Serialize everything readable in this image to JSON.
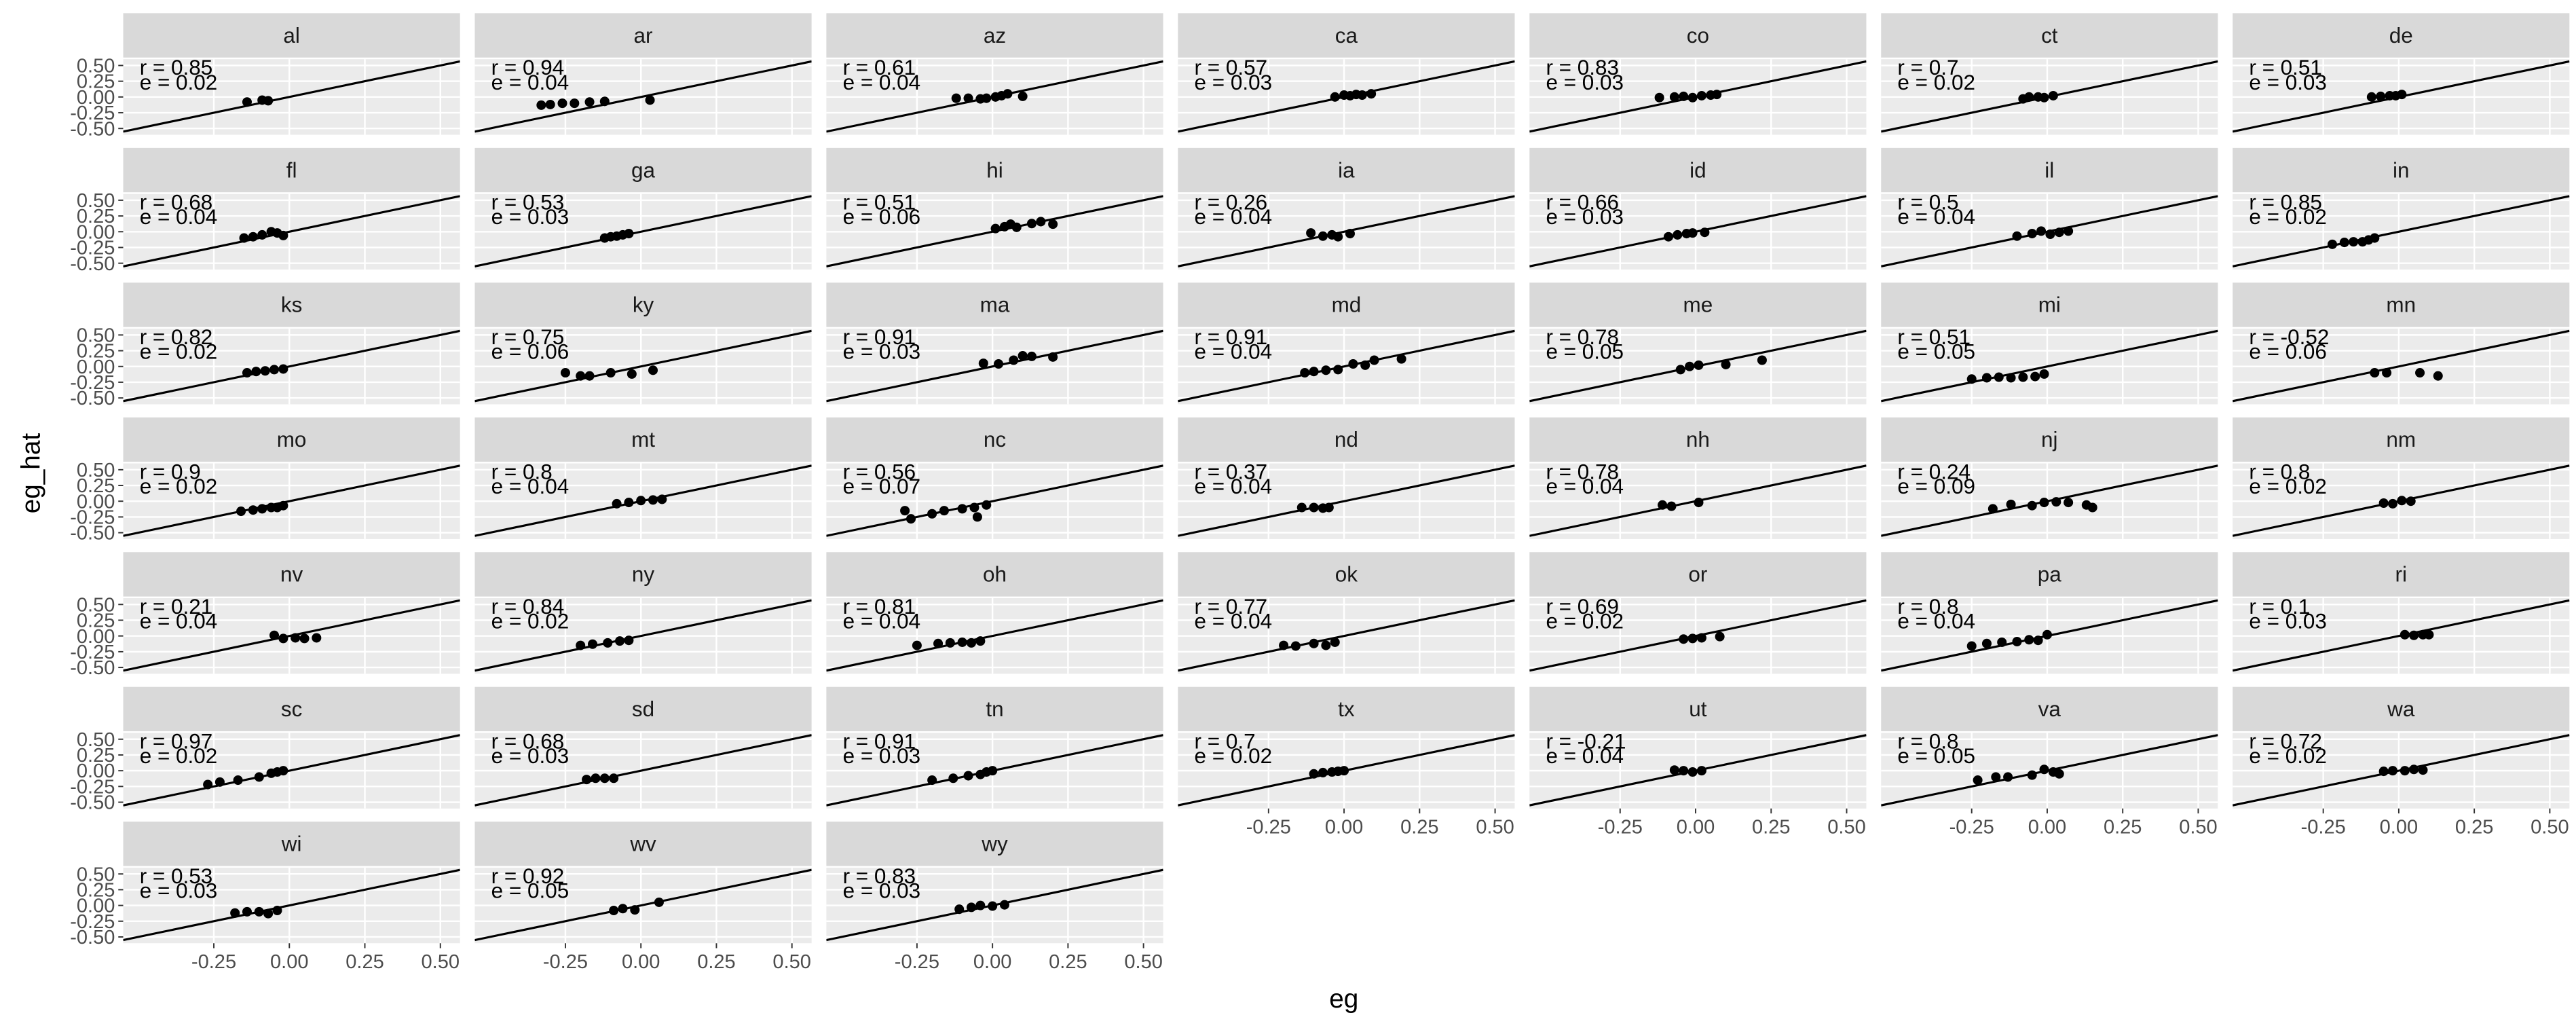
{
  "chart_data": {
    "type": "scatter",
    "xlabel": "eg",
    "ylabel": "eg_hat",
    "xlim": [
      -0.55,
      0.565
    ],
    "ylim": [
      -0.6,
      0.6
    ],
    "xticks": [
      {
        "value": -0.25,
        "label": "-0.25"
      },
      {
        "value": 0,
        "label": "0.00"
      },
      0.25,
      {
        "value": 0.5,
        "label": "0.50"
      }
    ],
    "yticks": [
      {
        "value": -0.5,
        "label": "-0.50"
      },
      -0.25,
      {
        "value": 0,
        "label": "0.00"
      },
      0.25,
      {
        "value": 0.5,
        "label": "0.50"
      }
    ],
    "grid": true,
    "color": "#000000",
    "panels": [
      {
        "title": "al",
        "r": "r = 0.85",
        "e": "e = 0.02",
        "x": [
          -0.14,
          -0.09,
          -0.07
        ],
        "y": [
          -0.08,
          -0.05,
          -0.06
        ]
      },
      {
        "title": "ar",
        "r": "r = 0.94",
        "e": "e = 0.04",
        "x": [
          -0.33,
          -0.3,
          -0.26,
          -0.22,
          -0.17,
          -0.12,
          0.03
        ],
        "y": [
          -0.13,
          -0.12,
          -0.1,
          -0.1,
          -0.08,
          -0.07,
          -0.05
        ]
      },
      {
        "title": "az",
        "r": "r = 0.61",
        "e": "e = 0.04",
        "x": [
          -0.12,
          -0.08,
          -0.04,
          -0.02,
          0.01,
          0.03,
          0.05,
          0.1
        ],
        "y": [
          -0.02,
          -0.02,
          -0.03,
          -0.02,
          0,
          0.02,
          0.05,
          0.01
        ]
      },
      {
        "title": "ca",
        "r": "r = 0.57",
        "e": "e = 0.03",
        "x": [
          -0.03,
          0,
          0.02,
          0.04,
          0.06,
          0.09
        ],
        "y": [
          0,
          0.03,
          0.02,
          0.04,
          0.03,
          0.05
        ]
      },
      {
        "title": "co",
        "r": "r = 0.83",
        "e": "e = 0.03",
        "x": [
          -0.12,
          -0.07,
          -0.04,
          -0.01,
          0.02,
          0.05,
          0.07
        ],
        "y": [
          -0.01,
          0,
          0.01,
          -0.01,
          0.02,
          0.03,
          0.04
        ]
      },
      {
        "title": "ct",
        "r": "r = 0.7",
        "e": "e = 0.02",
        "x": [
          -0.08,
          -0.06,
          -0.03,
          -0.01,
          0.02
        ],
        "y": [
          -0.03,
          0,
          0,
          -0.01,
          0.02
        ]
      },
      {
        "title": "de",
        "r": "r = 0.51",
        "e": "e = 0.03",
        "x": [
          -0.09,
          -0.06,
          -0.03,
          -0.01,
          0.01
        ],
        "y": [
          0,
          0.01,
          0.02,
          0.02,
          0.04
        ]
      },
      {
        "title": "fl",
        "r": "r = 0.68",
        "e": "e = 0.04",
        "x": [
          -0.15,
          -0.12,
          -0.09,
          -0.06,
          -0.04,
          -0.02
        ],
        "y": [
          -0.1,
          -0.08,
          -0.05,
          0,
          -0.02,
          -0.06
        ]
      },
      {
        "title": "ga",
        "r": "r = 0.53",
        "e": "e = 0.03",
        "x": [
          -0.12,
          -0.1,
          -0.08,
          -0.06,
          -0.04
        ],
        "y": [
          -0.1,
          -0.08,
          -0.07,
          -0.05,
          -0.03
        ]
      },
      {
        "title": "hi",
        "r": "r = 0.51",
        "e": "e = 0.06",
        "x": [
          0.01,
          0.04,
          0.06,
          0.08,
          0.13,
          0.16,
          0.2
        ],
        "y": [
          0.05,
          0.08,
          0.12,
          0.07,
          0.13,
          0.16,
          0.12
        ]
      },
      {
        "title": "ia",
        "r": "r = 0.26",
        "e": "e = 0.04",
        "x": [
          -0.11,
          -0.07,
          -0.04,
          -0.02,
          0.02
        ],
        "y": [
          -0.02,
          -0.07,
          -0.05,
          -0.08,
          -0.03
        ]
      },
      {
        "title": "id",
        "r": "r = 0.66",
        "e": "e = 0.03",
        "x": [
          -0.09,
          -0.06,
          -0.03,
          -0.01,
          0.03
        ],
        "y": [
          -0.08,
          -0.05,
          -0.03,
          -0.02,
          -0.01
        ]
      },
      {
        "title": "il",
        "r": "r = 0.5",
        "e": "e = 0.04",
        "x": [
          -0.1,
          -0.05,
          -0.02,
          0.01,
          0.04,
          0.07
        ],
        "y": [
          -0.07,
          -0.03,
          0.01,
          -0.04,
          -0.01,
          0.01
        ]
      },
      {
        "title": "in",
        "r": "r = 0.85",
        "e": "e = 0.02",
        "x": [
          -0.22,
          -0.18,
          -0.15,
          -0.12,
          -0.1,
          -0.08
        ],
        "y": [
          -0.2,
          -0.17,
          -0.16,
          -0.16,
          -0.13,
          -0.1
        ]
      },
      {
        "title": "ks",
        "r": "r = 0.82",
        "e": "e = 0.02",
        "x": [
          -0.14,
          -0.11,
          -0.08,
          -0.05,
          -0.02
        ],
        "y": [
          -0.1,
          -0.08,
          -0.07,
          -0.05,
          -0.04
        ]
      },
      {
        "title": "ky",
        "r": "r = 0.75",
        "e": "e = 0.06",
        "x": [
          -0.25,
          -0.2,
          -0.17,
          -0.1,
          -0.03,
          0.04
        ],
        "y": [
          -0.1,
          -0.15,
          -0.15,
          -0.1,
          -0.12,
          -0.06
        ]
      },
      {
        "title": "ma",
        "r": "r = 0.91",
        "e": "e = 0.03",
        "x": [
          -0.03,
          0.02,
          0.07,
          0.1,
          0.13,
          0.2
        ],
        "y": [
          0.05,
          0.04,
          0.1,
          0.17,
          0.16,
          0.15
        ]
      },
      {
        "title": "md",
        "r": "r = 0.91",
        "e": "e = 0.04",
        "x": [
          -0.13,
          -0.1,
          -0.06,
          -0.02,
          0.03,
          0.07,
          0.1,
          0.19
        ],
        "y": [
          -0.1,
          -0.08,
          -0.06,
          -0.05,
          0.04,
          0.02,
          0.1,
          0.12
        ]
      },
      {
        "title": "me",
        "r": "r = 0.78",
        "e": "e = 0.05",
        "x": [
          -0.05,
          -0.02,
          0.01,
          0.1,
          0.22
        ],
        "y": [
          -0.05,
          0,
          0.02,
          0.03,
          0.1
        ]
      },
      {
        "title": "mi",
        "r": "r = 0.51",
        "e": "e = 0.05",
        "x": [
          -0.25,
          -0.2,
          -0.16,
          -0.12,
          -0.08,
          -0.04,
          -0.01
        ],
        "y": [
          -0.2,
          -0.18,
          -0.17,
          -0.18,
          -0.17,
          -0.16,
          -0.12
        ]
      },
      {
        "title": "mn",
        "r": "r = -0.52",
        "e": "e = 0.06",
        "x": [
          -0.08,
          -0.04,
          0.07,
          0.13
        ],
        "y": [
          -0.1,
          -0.1,
          -0.1,
          -0.15
        ]
      },
      {
        "title": "mo",
        "r": "r = 0.9",
        "e": "e = 0.02",
        "x": [
          -0.16,
          -0.12,
          -0.09,
          -0.06,
          -0.04,
          -0.02
        ],
        "y": [
          -0.16,
          -0.14,
          -0.12,
          -0.1,
          -0.1,
          -0.07
        ]
      },
      {
        "title": "mt",
        "r": "r = 0.8",
        "e": "e = 0.04",
        "x": [
          -0.08,
          -0.04,
          0,
          0.04,
          0.07
        ],
        "y": [
          -0.04,
          -0.02,
          0.01,
          0.02,
          0.03
        ]
      },
      {
        "title": "nc",
        "r": "r = 0.56",
        "e": "e = 0.07",
        "x": [
          -0.29,
          -0.27,
          -0.2,
          -0.16,
          -0.1,
          -0.06,
          -0.05,
          -0.02
        ],
        "y": [
          -0.15,
          -0.28,
          -0.2,
          -0.15,
          -0.12,
          -0.1,
          -0.25,
          -0.06
        ]
      },
      {
        "title": "nd",
        "r": "r = 0.37",
        "e": "e = 0.04",
        "x": [
          -0.14,
          -0.1,
          -0.07,
          -0.05
        ],
        "y": [
          -0.1,
          -0.1,
          -0.11,
          -0.1
        ]
      },
      {
        "title": "nh",
        "r": "r = 0.78",
        "e": "e = 0.04",
        "x": [
          -0.11,
          -0.08,
          0.01
        ],
        "y": [
          -0.06,
          -0.08,
          -0.02
        ]
      },
      {
        "title": "nj",
        "r": "r = 0.24",
        "e": "e = 0.09",
        "x": [
          -0.18,
          -0.12,
          -0.05,
          -0.01,
          0.03,
          0.07,
          0.13,
          0.15
        ],
        "y": [
          -0.12,
          -0.05,
          -0.07,
          -0.02,
          -0.01,
          -0.02,
          -0.06,
          -0.1
        ]
      },
      {
        "title": "nm",
        "r": "r = 0.8",
        "e": "e = 0.02",
        "x": [
          -0.05,
          -0.02,
          0.01,
          0.04
        ],
        "y": [
          -0.03,
          -0.04,
          0.01,
          0
        ]
      },
      {
        "title": "nv",
        "r": "r = 0.21",
        "e": "e = 0.04",
        "x": [
          -0.05,
          -0.02,
          0.02,
          0.05,
          0.09
        ],
        "y": [
          0.01,
          -0.04,
          -0.03,
          -0.04,
          -0.03
        ]
      },
      {
        "title": "ny",
        "r": "r = 0.84",
        "e": "e = 0.02",
        "x": [
          -0.2,
          -0.16,
          -0.11,
          -0.07,
          -0.04
        ],
        "y": [
          -0.15,
          -0.13,
          -0.11,
          -0.08,
          -0.07
        ]
      },
      {
        "title": "oh",
        "r": "r = 0.81",
        "e": "e = 0.04",
        "x": [
          -0.25,
          -0.18,
          -0.14,
          -0.1,
          -0.07,
          -0.04
        ],
        "y": [
          -0.15,
          -0.12,
          -0.11,
          -0.1,
          -0.11,
          -0.08
        ]
      },
      {
        "title": "ok",
        "r": "r = 0.77",
        "e": "e = 0.04",
        "x": [
          -0.2,
          -0.16,
          -0.1,
          -0.06,
          -0.03
        ],
        "y": [
          -0.15,
          -0.16,
          -0.12,
          -0.15,
          -0.1
        ]
      },
      {
        "title": "or",
        "r": "r = 0.69",
        "e": "e = 0.02",
        "x": [
          -0.04,
          -0.01,
          0.02,
          0.08
        ],
        "y": [
          -0.05,
          -0.04,
          -0.03,
          -0.01
        ]
      },
      {
        "title": "pa",
        "r": "r = 0.8",
        "e": "e = 0.04",
        "x": [
          -0.25,
          -0.2,
          -0.15,
          -0.1,
          -0.06,
          -0.03,
          0
        ],
        "y": [
          -0.16,
          -0.12,
          -0.1,
          -0.09,
          -0.06,
          -0.07,
          0.02
        ]
      },
      {
        "title": "ri",
        "r": "r = 0.1",
        "e": "e = 0.03",
        "x": [
          0.02,
          0.05,
          0.08,
          0.1
        ],
        "y": [
          0.02,
          0.01,
          0.02,
          0.02
        ]
      },
      {
        "title": "sc",
        "r": "r = 0.97",
        "e": "e = 0.02",
        "x": [
          -0.27,
          -0.23,
          -0.17,
          -0.1,
          -0.06,
          -0.04,
          -0.02
        ],
        "y": [
          -0.22,
          -0.18,
          -0.15,
          -0.1,
          -0.04,
          -0.02,
          0
        ]
      },
      {
        "title": "sd",
        "r": "r = 0.68",
        "e": "e = 0.03",
        "x": [
          -0.18,
          -0.15,
          -0.12,
          -0.09
        ],
        "y": [
          -0.14,
          -0.12,
          -0.12,
          -0.12
        ]
      },
      {
        "title": "tn",
        "r": "r = 0.91",
        "e": "e = 0.03",
        "x": [
          -0.2,
          -0.13,
          -0.08,
          -0.04,
          -0.02,
          0
        ],
        "y": [
          -0.15,
          -0.12,
          -0.08,
          -0.06,
          -0.02,
          0
        ]
      },
      {
        "title": "tx",
        "r": "r = 0.7",
        "e": "e = 0.02",
        "x": [
          -0.1,
          -0.07,
          -0.04,
          -0.02,
          0
        ],
        "y": [
          -0.05,
          -0.03,
          -0.02,
          -0.01,
          0
        ]
      },
      {
        "title": "ut",
        "r": "r = -0.21",
        "e": "e = 0.04",
        "x": [
          -0.07,
          -0.04,
          -0.01,
          0.02
        ],
        "y": [
          0.01,
          0,
          -0.02,
          0
        ]
      },
      {
        "title": "va",
        "r": "r = 0.8",
        "e": "e = 0.05",
        "x": [
          -0.23,
          -0.17,
          -0.13,
          -0.05,
          -0.01,
          0.02,
          0.04
        ],
        "y": [
          -0.15,
          -0.1,
          -0.1,
          -0.07,
          0.02,
          -0.02,
          -0.05
        ]
      },
      {
        "title": "wa",
        "r": "r = 0.72",
        "e": "e = 0.02",
        "x": [
          -0.05,
          -0.02,
          0.02,
          0.05,
          0.08
        ],
        "y": [
          -0.01,
          0,
          0,
          0.02,
          0.01
        ]
      },
      {
        "title": "wi",
        "r": "r = 0.53",
        "e": "e = 0.03",
        "x": [
          -0.18,
          -0.14,
          -0.1,
          -0.07,
          -0.04
        ],
        "y": [
          -0.12,
          -0.1,
          -0.1,
          -0.13,
          -0.08
        ]
      },
      {
        "title": "wv",
        "r": "r = 0.92",
        "e": "e = 0.05",
        "x": [
          -0.09,
          -0.06,
          -0.02,
          0.06
        ],
        "y": [
          -0.08,
          -0.05,
          -0.07,
          0.05
        ]
      },
      {
        "title": "wy",
        "r": "r = 0.83",
        "e": "e = 0.03",
        "x": [
          -0.11,
          -0.07,
          -0.04,
          0,
          0.04
        ],
        "y": [
          -0.06,
          -0.03,
          0,
          -0.01,
          0.01
        ]
      }
    ]
  }
}
